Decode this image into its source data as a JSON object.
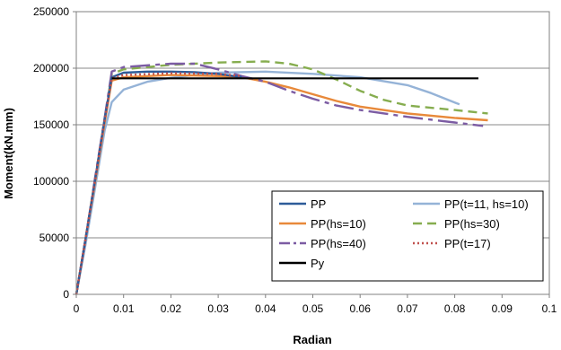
{
  "chart_data": {
    "type": "line",
    "xlabel": "Radian",
    "ylabel": "Moment(kN.mm)",
    "xlim": [
      0,
      0.1
    ],
    "ylim": [
      0,
      250000
    ],
    "x_ticks": [
      "0",
      "0.01",
      "0.02",
      "0.03",
      "0.04",
      "0.05",
      "0.06",
      "0.07",
      "0.08",
      "0.09",
      "0.1"
    ],
    "y_ticks": [
      "0",
      "50000",
      "100000",
      "150000",
      "200000",
      "250000"
    ],
    "grid": "horizontal-major",
    "legend_position": "bottom-right-inside",
    "series": [
      {
        "name": "PP",
        "color": "#2e5c99",
        "dash": "solid",
        "points": [
          [
            0,
            0
          ],
          [
            0.002,
            50000
          ],
          [
            0.004,
            102000
          ],
          [
            0.006,
            155000
          ],
          [
            0.0075,
            192000
          ],
          [
            0.01,
            196000
          ],
          [
            0.015,
            197000
          ],
          [
            0.02,
            197000
          ],
          [
            0.025,
            196500
          ],
          [
            0.03,
            195000
          ],
          [
            0.035,
            192000
          ]
        ]
      },
      {
        "name": "PP(t=11, hs=10)",
        "color": "#95b3d7",
        "dash": "solid",
        "points": [
          [
            0,
            0
          ],
          [
            0.002,
            45000
          ],
          [
            0.004,
            95000
          ],
          [
            0.006,
            145000
          ],
          [
            0.0075,
            170000
          ],
          [
            0.01,
            181000
          ],
          [
            0.015,
            188000
          ],
          [
            0.02,
            191500
          ],
          [
            0.025,
            194000
          ],
          [
            0.03,
            196000
          ],
          [
            0.04,
            197000
          ],
          [
            0.05,
            195000
          ],
          [
            0.06,
            192000
          ],
          [
            0.07,
            185000
          ],
          [
            0.075,
            178000
          ],
          [
            0.081,
            168000
          ]
        ]
      },
      {
        "name": "PP(hs=10)",
        "color": "#e8893a",
        "dash": "solid",
        "points": [
          [
            0,
            0
          ],
          [
            0.002,
            50000
          ],
          [
            0.004,
            100000
          ],
          [
            0.006,
            152000
          ],
          [
            0.0075,
            189000
          ],
          [
            0.01,
            192000
          ],
          [
            0.02,
            194000
          ],
          [
            0.03,
            193000
          ],
          [
            0.035,
            192000
          ],
          [
            0.04,
            188000
          ],
          [
            0.045,
            183000
          ],
          [
            0.05,
            177000
          ],
          [
            0.055,
            171000
          ],
          [
            0.06,
            166000
          ],
          [
            0.07,
            160000
          ],
          [
            0.08,
            156000
          ],
          [
            0.087,
            154000
          ]
        ]
      },
      {
        "name": "PP(hs=30)",
        "color": "#86ad4f",
        "dash": "10,6",
        "points": [
          [
            0,
            0
          ],
          [
            0.002,
            50000
          ],
          [
            0.004,
            103000
          ],
          [
            0.006,
            155000
          ],
          [
            0.0075,
            195000
          ],
          [
            0.01,
            199000
          ],
          [
            0.02,
            203000
          ],
          [
            0.03,
            205000
          ],
          [
            0.04,
            206000
          ],
          [
            0.045,
            204000
          ],
          [
            0.05,
            199000
          ],
          [
            0.055,
            190000
          ],
          [
            0.06,
            180000
          ],
          [
            0.065,
            172000
          ],
          [
            0.07,
            167000
          ],
          [
            0.08,
            163000
          ],
          [
            0.087,
            160000
          ]
        ]
      },
      {
        "name": "PP(hs=40)",
        "color": "#7c5ca3",
        "dash": "22,6,5,6",
        "points": [
          [
            0,
            0
          ],
          [
            0.002,
            50000
          ],
          [
            0.004,
            104000
          ],
          [
            0.006,
            156000
          ],
          [
            0.0075,
            197000
          ],
          [
            0.01,
            201000
          ],
          [
            0.02,
            204000
          ],
          [
            0.025,
            204000
          ],
          [
            0.03,
            199000
          ],
          [
            0.035,
            193000
          ],
          [
            0.04,
            188000
          ],
          [
            0.045,
            180000
          ],
          [
            0.05,
            173000
          ],
          [
            0.055,
            167000
          ],
          [
            0.06,
            163000
          ],
          [
            0.07,
            157000
          ],
          [
            0.08,
            152000
          ],
          [
            0.086,
            149000
          ]
        ]
      },
      {
        "name": "PP(t=17)",
        "color": "#c0504d",
        "dash": "2,3",
        "points": [
          [
            0,
            0
          ],
          [
            0.002,
            50000
          ],
          [
            0.004,
            102000
          ],
          [
            0.006,
            154000
          ],
          [
            0.0075,
            191000
          ],
          [
            0.01,
            194000
          ],
          [
            0.02,
            195500
          ],
          [
            0.03,
            195000
          ],
          [
            0.035,
            193000
          ]
        ]
      },
      {
        "name": "Py",
        "color": "#000000",
        "dash": "solid",
        "points": [
          [
            0.0075,
            191000
          ],
          [
            0.085,
            191000
          ]
        ]
      }
    ]
  }
}
